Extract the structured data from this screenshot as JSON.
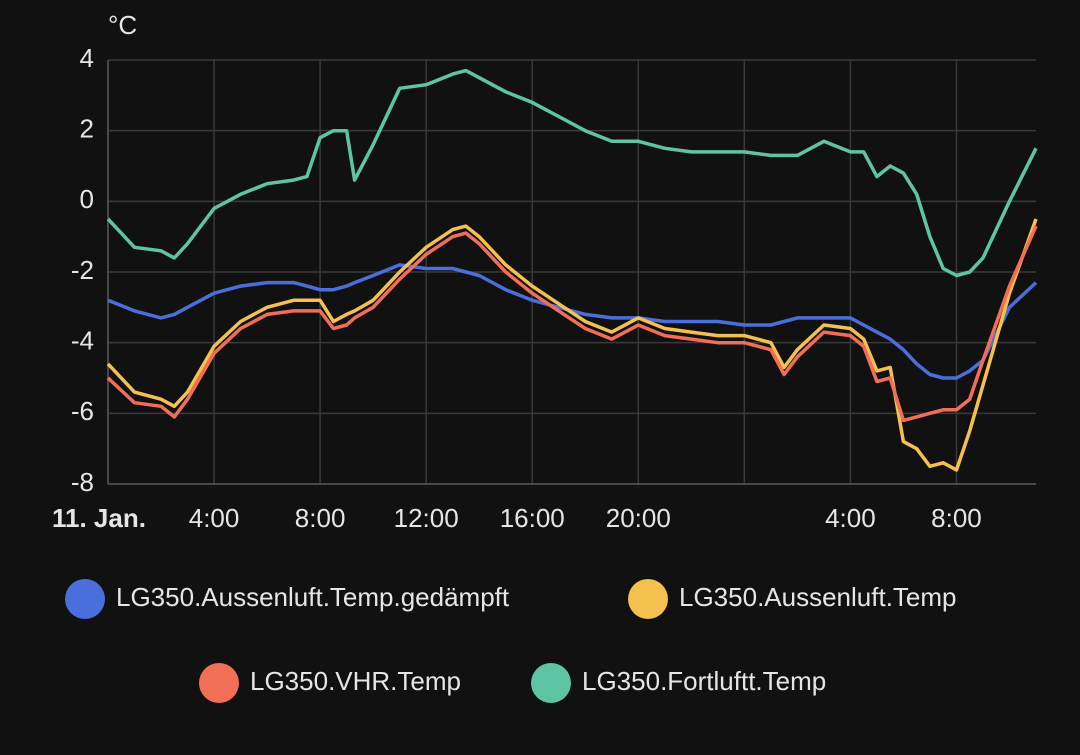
{
  "chart_data": {
    "type": "line",
    "y_label": "°C",
    "x": [
      0,
      1,
      2,
      2.5,
      3,
      4,
      5,
      6,
      7,
      7.5,
      8,
      8.5,
      9,
      9.3,
      10,
      11,
      12,
      13,
      13.5,
      14,
      15,
      16,
      17,
      18,
      19,
      20,
      21,
      22,
      23,
      24,
      25,
      25.5,
      26,
      27,
      28,
      28.5,
      29,
      29.5,
      30,
      30.5,
      31,
      31.5,
      32,
      32.5,
      33,
      34,
      35
    ],
    "xlim": [
      0,
      35
    ],
    "xticks": [
      {
        "value": 0,
        "label": "11. Jan."
      },
      {
        "value": 4,
        "label": "4:00"
      },
      {
        "value": 8,
        "label": "8:00"
      },
      {
        "value": 12,
        "label": "12:00"
      },
      {
        "value": 16,
        "label": "16:00"
      },
      {
        "value": 20,
        "label": "20:00"
      },
      {
        "value": 24,
        "label": null
      },
      {
        "value": 28,
        "label": "4:00"
      },
      {
        "value": 32,
        "label": "8:00"
      }
    ],
    "ylim": [
      -8,
      4
    ],
    "yticks": [
      -8,
      -6,
      -4,
      -2,
      0,
      2,
      4
    ],
    "grid": true,
    "series": [
      {
        "name": "LG350.Aussenluft.Temp.gedämpft",
        "color": "#4a6fdc",
        "values": [
          -2.8,
          -3.1,
          -3.3,
          -3.2,
          -3.0,
          -2.6,
          -2.4,
          -2.3,
          -2.3,
          -2.4,
          -2.5,
          -2.5,
          -2.4,
          -2.3,
          -2.1,
          -1.8,
          -1.9,
          -1.9,
          -2.0,
          -2.1,
          -2.5,
          -2.8,
          -3.0,
          -3.2,
          -3.3,
          -3.3,
          -3.4,
          -3.4,
          -3.4,
          -3.5,
          -3.5,
          -3.4,
          -3.3,
          -3.3,
          -3.3,
          -3.5,
          -3.7,
          -3.9,
          -4.2,
          -4.6,
          -4.9,
          -5.0,
          -5.0,
          -4.8,
          -4.5,
          -3.0,
          -2.3
        ]
      },
      {
        "name": "LG350.Aussenluft.Temp",
        "color": "#f4c04e",
        "values": [
          -4.6,
          -5.4,
          -5.6,
          -5.8,
          -5.4,
          -4.1,
          -3.4,
          -3.0,
          -2.8,
          -2.8,
          -2.8,
          -3.4,
          -3.2,
          -3.1,
          -2.8,
          -2.0,
          -1.3,
          -0.8,
          -0.7,
          -1.0,
          -1.8,
          -2.4,
          -2.9,
          -3.4,
          -3.7,
          -3.3,
          -3.6,
          -3.7,
          -3.8,
          -3.8,
          -4.0,
          -4.7,
          -4.2,
          -3.5,
          -3.6,
          -3.9,
          -4.8,
          -4.7,
          -6.8,
          -7.0,
          -7.5,
          -7.4,
          -7.6,
          -6.5,
          -5.2,
          -2.6,
          -0.5
        ]
      },
      {
        "name": "LG350.VHR.Temp",
        "color": "#f36e57",
        "values": [
          -5.0,
          -5.7,
          -5.8,
          -6.1,
          -5.6,
          -4.3,
          -3.6,
          -3.2,
          -3.1,
          -3.1,
          -3.1,
          -3.6,
          -3.5,
          -3.3,
          -3.0,
          -2.2,
          -1.5,
          -1.0,
          -0.9,
          -1.2,
          -2.0,
          -2.6,
          -3.1,
          -3.6,
          -3.9,
          -3.5,
          -3.8,
          -3.9,
          -4.0,
          -4.0,
          -4.2,
          -4.9,
          -4.4,
          -3.7,
          -3.8,
          -4.1,
          -5.1,
          -5.0,
          -6.2,
          -6.1,
          -6.0,
          -5.9,
          -5.9,
          -5.6,
          -4.5,
          -2.4,
          -0.7
        ]
      },
      {
        "name": "LG350.Fortluftt.Temp",
        "color": "#5ec5a4",
        "values": [
          -0.5,
          -1.3,
          -1.4,
          -1.6,
          -1.2,
          -0.2,
          0.2,
          0.5,
          0.6,
          0.7,
          1.8,
          2.0,
          2.0,
          0.6,
          1.6,
          3.2,
          3.3,
          3.6,
          3.7,
          3.5,
          3.1,
          2.8,
          2.4,
          2.0,
          1.7,
          1.7,
          1.5,
          1.4,
          1.4,
          1.4,
          1.3,
          1.3,
          1.3,
          1.7,
          1.4,
          1.4,
          0.7,
          1.0,
          0.8,
          0.2,
          -1.0,
          -1.9,
          -2.1,
          -2.0,
          -1.6,
          0.0,
          1.5
        ]
      }
    ]
  }
}
